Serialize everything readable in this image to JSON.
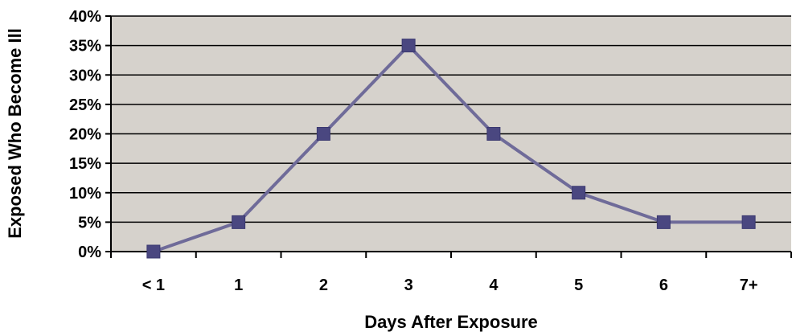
{
  "chart_data": {
    "type": "line",
    "categories": [
      "< 1",
      "1",
      "2",
      "3",
      "4",
      "5",
      "6",
      "7+"
    ],
    "values": [
      0,
      5,
      20,
      35,
      20,
      10,
      5,
      5
    ],
    "title": "",
    "xlabel": "Days After Exposure",
    "ylabel": "Exposed Who Become Ill",
    "ylim": [
      0,
      40
    ],
    "yticks": [
      "0%",
      "5%",
      "10%",
      "15%",
      "20%",
      "25%",
      "30%",
      "35%",
      "40%"
    ],
    "grid": true,
    "colors": {
      "plot_background": "#d6d2cc",
      "line": "#6f6b99",
      "marker": "#4a4780",
      "grid": "#000000"
    }
  }
}
